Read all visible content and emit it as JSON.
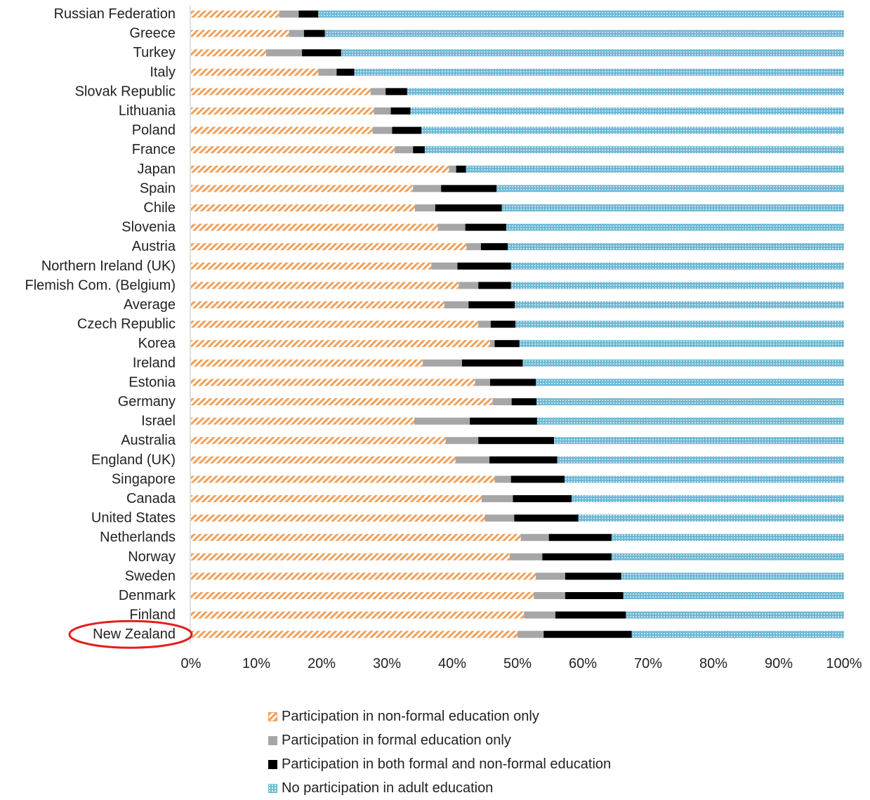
{
  "chart_data": {
    "type": "bar",
    "orientation": "horizontal",
    "stacked": true,
    "stacked_percent": true,
    "title": "",
    "xlabel": "",
    "ylabel": "",
    "xlim": [
      0,
      100
    ],
    "x_ticks": [
      "0%",
      "10%",
      "20%",
      "30%",
      "40%",
      "50%",
      "60%",
      "70%",
      "80%",
      "90%",
      "100%"
    ],
    "grid": false,
    "legend_position": "bottom",
    "highlighted_category": "New Zealand",
    "highlight_color": "#e0201b",
    "categories": [
      "Russian Federation",
      "Greece",
      "Turkey",
      "Italy",
      "Slovak Republic",
      "Lithuania",
      "Poland",
      "France",
      "Japan",
      "Spain",
      "Chile",
      "Slovenia",
      "Austria",
      "Northern Ireland (UK)",
      "Flemish Com. (Belgium)",
      "Average",
      "Czech Republic",
      "Korea",
      "Ireland",
      "Estonia",
      "Germany",
      "Israel",
      "Australia",
      "England (UK)",
      "Singapore",
      "Canada",
      "United States",
      "Netherlands",
      "Norway",
      "Sweden",
      "Denmark",
      "Finland",
      "New Zealand"
    ],
    "series": [
      {
        "name": "Participation in non-formal education only",
        "color": "#f0a05a",
        "pattern": "diagonal-stripes",
        "values": [
          13.5,
          15,
          11.5,
          19.5,
          27.5,
          28,
          27.8,
          31.2,
          39.5,
          34,
          34.3,
          37.8,
          42.2,
          36.8,
          41,
          38.8,
          44,
          45.8,
          35.5,
          43.5,
          46.2,
          34.2,
          39,
          40.5,
          46.5,
          44.5,
          45,
          50.5,
          48.8,
          52.8,
          52.5,
          51,
          50
        ]
      },
      {
        "name": "Participation in formal education only",
        "color": "#a6a6a6",
        "pattern": "solid",
        "values": [
          3,
          2.3,
          5.5,
          2.8,
          2.3,
          2.6,
          3,
          2.8,
          1.1,
          4.3,
          3.1,
          4.2,
          2.2,
          4,
          3,
          3.7,
          1.9,
          0.7,
          6,
          2.3,
          2.9,
          8.5,
          5,
          5.2,
          2.5,
          4.8,
          4.5,
          4.3,
          5,
          4.5,
          4.8,
          4.8,
          4
        ]
      },
      {
        "name": "Participation in both formal and non-formal education",
        "color": "#000000",
        "pattern": "solid",
        "values": [
          3,
          3.2,
          6,
          2.7,
          3.3,
          3,
          4.5,
          1.8,
          1.5,
          8.5,
          10.2,
          6.3,
          4.1,
          8.2,
          5,
          7.1,
          3.8,
          3.8,
          9.3,
          7,
          3.8,
          10.3,
          11.6,
          10.4,
          8.2,
          9,
          9.8,
          9.6,
          10.6,
          8.6,
          8.9,
          10.8,
          13.5
        ]
      },
      {
        "name": "No participation in adult education",
        "color": "#6fb8d4",
        "pattern": "dots",
        "values": [
          80.5,
          79.5,
          77,
          75,
          66.9,
          66.4,
          64.7,
          64.2,
          57.9,
          53.2,
          52.4,
          51.7,
          51.5,
          51,
          51,
          50.4,
          50.3,
          49.7,
          49.2,
          47.2,
          47.1,
          47,
          44.4,
          43.9,
          42.8,
          41.7,
          40.7,
          35.6,
          35.6,
          34.1,
          33.8,
          33.4,
          32.5
        ]
      }
    ]
  }
}
